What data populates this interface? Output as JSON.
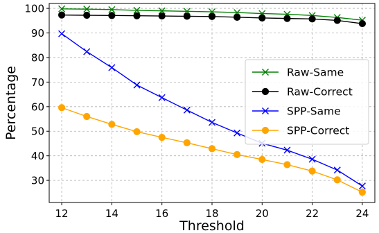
{
  "chart_data": {
    "type": "line",
    "title": "",
    "xlabel": "Threshold",
    "ylabel": "Percentage",
    "x": [
      12,
      13,
      14,
      15,
      16,
      17,
      18,
      19,
      20,
      21,
      22,
      23,
      24
    ],
    "xlim": [
      11.5,
      24.5
    ],
    "ylim": [
      21,
      102
    ],
    "xticks": [
      12,
      14,
      16,
      18,
      20,
      22,
      24
    ],
    "yticks": [
      30,
      40,
      50,
      60,
      70,
      80,
      90,
      100
    ],
    "grid": true,
    "legend_position": "center-right",
    "series": [
      {
        "name": "Raw-Same",
        "color": "#008000",
        "marker": "x",
        "values": [
          99.8,
          99.7,
          99.5,
          99.2,
          99.0,
          98.8,
          98.6,
          98.3,
          97.9,
          97.6,
          97.1,
          96.3,
          95.2
        ]
      },
      {
        "name": "Raw-Correct",
        "color": "#000000",
        "marker": "o",
        "values": [
          97.3,
          97.2,
          97.1,
          97.0,
          96.9,
          96.8,
          96.7,
          96.4,
          96.1,
          95.9,
          95.7,
          95.1,
          93.8
        ]
      },
      {
        "name": "SPP-Same",
        "color": "#0000ff",
        "marker": "x",
        "values": [
          89.7,
          82.4,
          75.9,
          68.8,
          63.7,
          58.6,
          53.6,
          49.3,
          45.1,
          42.3,
          38.6,
          34.2,
          27.7
        ]
      },
      {
        "name": "SPP-Correct",
        "color": "#ffa500",
        "marker": "o",
        "values": [
          59.6,
          56.0,
          52.8,
          49.8,
          47.5,
          45.3,
          42.9,
          40.5,
          38.5,
          36.4,
          33.8,
          30.2,
          25.2
        ]
      }
    ]
  }
}
